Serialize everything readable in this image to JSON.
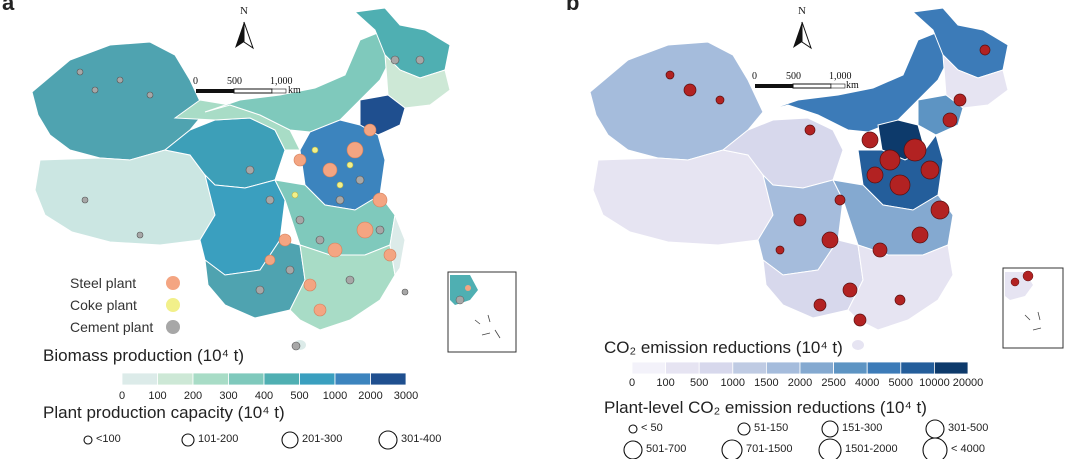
{
  "panel_a": {
    "letter": "a",
    "north": "N",
    "scale": {
      "labels": [
        "0",
        "500",
        "1,000"
      ],
      "unit": "km"
    },
    "plant_legend": [
      {
        "label": "Steel plant",
        "color": "#f4a582"
      },
      {
        "label": "Coke plant",
        "color": "#f2f08a"
      },
      {
        "label": "Cement plant",
        "color": "#a7a7a7"
      }
    ],
    "colorbar": {
      "title": "Biomass production (10⁴ t)",
      "ticks": [
        "0",
        "100",
        "200",
        "300",
        "400",
        "500",
        "1000",
        "2000",
        "3000"
      ],
      "colors": [
        "#dcebe9",
        "#cde8d6",
        "#a8dcc6",
        "#7fc9bc",
        "#4fafb2",
        "#3a9fbf",
        "#3c84be",
        "#1f4f8f"
      ]
    },
    "size_legend": {
      "title": "Plant production capacity (10⁴ t)",
      "labels": [
        "<100",
        "101-200",
        "201-300",
        "301-400"
      ]
    }
  },
  "panel_b": {
    "letter": "b",
    "north": "N",
    "scale": {
      "labels": [
        "0",
        "500",
        "1,000"
      ],
      "unit": "km"
    },
    "colorbar": {
      "title": "CO₂ emission reductions (10⁴ t)",
      "ticks": [
        "0",
        "100",
        "500",
        "1000",
        "1500",
        "2000",
        "2500",
        "4000",
        "5000",
        "10000",
        "20000"
      ],
      "colors": [
        "#f3f2fa",
        "#e6e4f2",
        "#d7d8ec",
        "#bfcbe3",
        "#a5bcdc",
        "#84a9d0",
        "#5d94c3",
        "#3c7bb8",
        "#245e9b",
        "#0d3a6b"
      ]
    },
    "size_legend": {
      "title": "Plant-level CO₂ emission reductions (10⁴ t)",
      "labels": [
        "< 50",
        "51-150",
        "151-300",
        "301-500",
        "501-700",
        "701-1500",
        "1501-2000",
        "< 4000"
      ]
    }
  }
}
